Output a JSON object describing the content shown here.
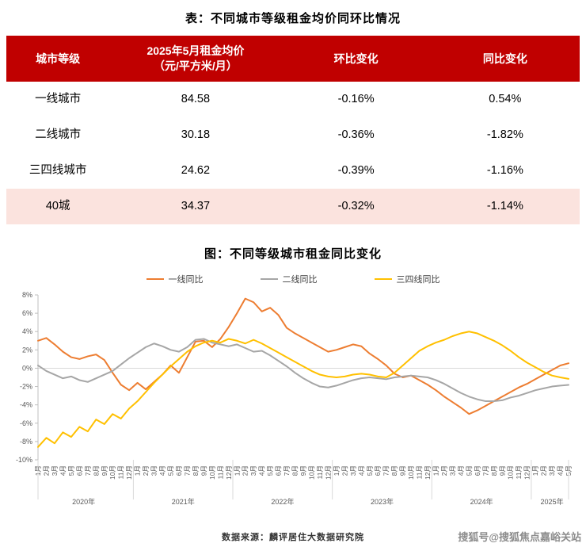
{
  "page": {
    "table_title": "表：不同城市等级租金均价同环比情况",
    "source": "数据来源：麟评居住大数据研究院",
    "watermark": "搜狐号@搜狐焦点嘉峪关站"
  },
  "colors": {
    "header_bg": "#c00000",
    "header_text": "#ffffff",
    "highlight_row_bg": "#fbe3de",
    "axis_text": "#595959",
    "watermark_text": "#8c8c8c"
  },
  "table": {
    "headers": {
      "tier": "城市等级",
      "price_line1": "2025年5月租金均价",
      "price_line2": "（元/平方米/月）",
      "mom": "环比变化",
      "yoy": "同比变化"
    },
    "rows": [
      {
        "tier": "一线城市",
        "price": "84.58",
        "mom": "-0.16%",
        "yoy": "0.54%"
      },
      {
        "tier": "二线城市",
        "price": "30.18",
        "mom": "-0.36%",
        "yoy": "-1.82%"
      },
      {
        "tier": "三四线城市",
        "price": "24.62",
        "mom": "-0.39%",
        "yoy": "-1.16%"
      },
      {
        "tier": "40城",
        "price": "34.37",
        "mom": "-0.32%",
        "yoy": "-1.14%"
      }
    ]
  },
  "chart_data": {
    "type": "line",
    "title": "图：不同等级城市租金同比变化",
    "ylim": [
      -10,
      8
    ],
    "grid": false,
    "legend_position": "top",
    "yticks": [
      {
        "v": 8,
        "label": "8%"
      },
      {
        "v": 6,
        "label": "6%"
      },
      {
        "v": 4,
        "label": "4%"
      },
      {
        "v": 2,
        "label": "2%"
      },
      {
        "v": 0,
        "label": "0%"
      },
      {
        "v": -2,
        "label": "-2%"
      },
      {
        "v": -4,
        "label": "-4%"
      },
      {
        "v": -6,
        "label": "-6%"
      },
      {
        "v": -8,
        "label": "-8%"
      },
      {
        "v": -10,
        "label": "-10%"
      }
    ],
    "x": [
      "1月",
      "2月",
      "3月",
      "4月",
      "5月",
      "6月",
      "7月",
      "8月",
      "9月",
      "10月",
      "11月",
      "12月",
      "1月",
      "2月",
      "3月",
      "4月",
      "5月",
      "6月",
      "7月",
      "8月",
      "9月",
      "10月",
      "11月",
      "12月",
      "1月",
      "2月",
      "3月",
      "4月",
      "5月",
      "6月",
      "7月",
      "8月",
      "9月",
      "10月",
      "11月",
      "12月",
      "1月",
      "2月",
      "3月",
      "4月",
      "5月",
      "6月",
      "7月",
      "8月",
      "9月",
      "10月",
      "11月",
      "12月",
      "1月",
      "2月",
      "3月",
      "4月",
      "5月",
      "6月",
      "7月",
      "8月",
      "9月",
      "10月",
      "11月",
      "12月",
      "1月",
      "2月",
      "3月",
      "4月",
      "5月"
    ],
    "year_groups": [
      {
        "label": "2020年",
        "months": 12
      },
      {
        "label": "2021年",
        "months": 12
      },
      {
        "label": "2022年",
        "months": 12
      },
      {
        "label": "2023年",
        "months": 12
      },
      {
        "label": "2024年",
        "months": 12
      },
      {
        "label": "2025年",
        "months": 5
      }
    ],
    "series": [
      {
        "name": "一线同比",
        "color": "#ED7D31",
        "values": [
          3.0,
          3.3,
          2.6,
          1.8,
          1.2,
          1.0,
          1.3,
          1.5,
          0.9,
          -0.5,
          -1.8,
          -2.4,
          -1.6,
          -2.3,
          -1.5,
          -0.7,
          0.3,
          -0.5,
          1.2,
          2.9,
          3.0,
          2.3,
          3.2,
          4.5,
          6.0,
          7.6,
          7.2,
          6.2,
          6.6,
          5.8,
          4.4,
          3.8,
          3.3,
          2.8,
          2.3,
          1.8,
          2.0,
          2.3,
          2.6,
          2.4,
          1.6,
          1.0,
          0.3,
          -0.6,
          -1.0,
          -0.8,
          -1.3,
          -1.8,
          -2.4,
          -3.1,
          -3.7,
          -4.3,
          -5.0,
          -4.6,
          -4.1,
          -3.6,
          -3.1,
          -2.6,
          -2.1,
          -1.7,
          -1.2,
          -0.7,
          -0.2,
          0.3,
          0.54
        ]
      },
      {
        "name": "二线同比",
        "color": "#A6A6A6",
        "values": [
          0.3,
          -0.3,
          -0.7,
          -1.1,
          -0.9,
          -1.3,
          -1.5,
          -1.1,
          -0.7,
          -0.3,
          0.4,
          1.1,
          1.7,
          2.3,
          2.7,
          2.4,
          2.0,
          1.8,
          2.3,
          3.1,
          3.2,
          2.8,
          2.6,
          2.4,
          2.6,
          2.2,
          1.8,
          1.9,
          1.4,
          0.8,
          0.2,
          -0.5,
          -1.1,
          -1.6,
          -2.0,
          -2.1,
          -1.9,
          -1.6,
          -1.3,
          -1.1,
          -1.0,
          -1.1,
          -1.2,
          -1.0,
          -0.9,
          -0.8,
          -0.9,
          -1.0,
          -1.3,
          -1.7,
          -2.2,
          -2.7,
          -3.1,
          -3.4,
          -3.6,
          -3.6,
          -3.5,
          -3.2,
          -3.0,
          -2.7,
          -2.4,
          -2.2,
          -2.0,
          -1.9,
          -1.82
        ]
      },
      {
        "name": "三四线同比",
        "color": "#FFC000",
        "values": [
          -8.6,
          -7.6,
          -8.2,
          -7.0,
          -7.5,
          -6.4,
          -6.9,
          -5.6,
          -6.1,
          -5.0,
          -5.5,
          -4.4,
          -3.6,
          -2.6,
          -1.6,
          -0.7,
          0.2,
          1.0,
          1.8,
          2.4,
          2.8,
          3.0,
          2.8,
          3.2,
          3.0,
          2.7,
          3.1,
          2.7,
          2.2,
          1.7,
          1.2,
          0.7,
          0.2,
          -0.3,
          -0.7,
          -0.9,
          -1.0,
          -0.9,
          -0.7,
          -0.6,
          -0.7,
          -0.9,
          -1.0,
          -0.5,
          0.3,
          1.1,
          1.9,
          2.4,
          2.8,
          3.1,
          3.5,
          3.8,
          4.0,
          3.8,
          3.4,
          3.0,
          2.5,
          1.9,
          1.2,
          0.6,
          0.1,
          -0.4,
          -0.8,
          -1.0,
          -1.16
        ]
      }
    ]
  }
}
